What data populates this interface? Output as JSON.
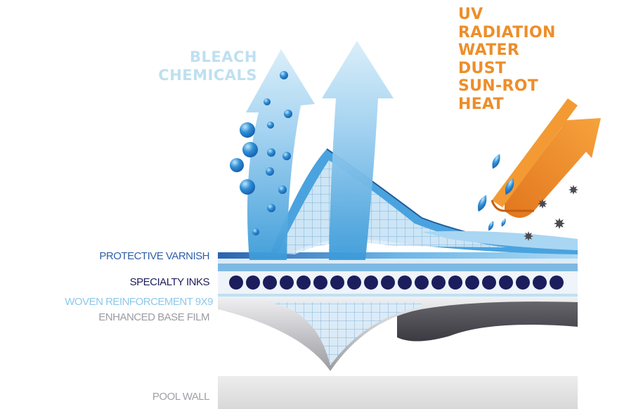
{
  "left_heading": {
    "lines": [
      "BLEACH",
      "CHEMICALS"
    ]
  },
  "right_heading": {
    "lines": [
      "UV",
      "RADIATION",
      "WATER",
      "DUST",
      "SUN-ROT",
      "HEAT"
    ]
  },
  "layers": {
    "protective_varnish": "PROTECTIVE VARNISH",
    "specialty_inks": "SPECIALTY INKS",
    "woven_reinforcement": "WOVEN REINFORCEMENT 9X9",
    "enhanced_base_film": "ENHANCED BASE FILM",
    "pool_wall": "POOL WALL"
  },
  "colors": {
    "bleach_text": "#bfe0f0",
    "threat_text": "#ed8e2a",
    "varnish": "#2f5fa8",
    "inks": "#1c1d5c",
    "woven": "#8cc8ea",
    "base_film": "#9b9ba2",
    "pool_wall": "#a0a0a6"
  },
  "icons": {
    "up_arrows": "up-arrow-icon",
    "deflected_arrow": "orange-deflect-arrow-icon",
    "droplets": "water-drop-icon",
    "dust": "dust-particle-icon"
  }
}
